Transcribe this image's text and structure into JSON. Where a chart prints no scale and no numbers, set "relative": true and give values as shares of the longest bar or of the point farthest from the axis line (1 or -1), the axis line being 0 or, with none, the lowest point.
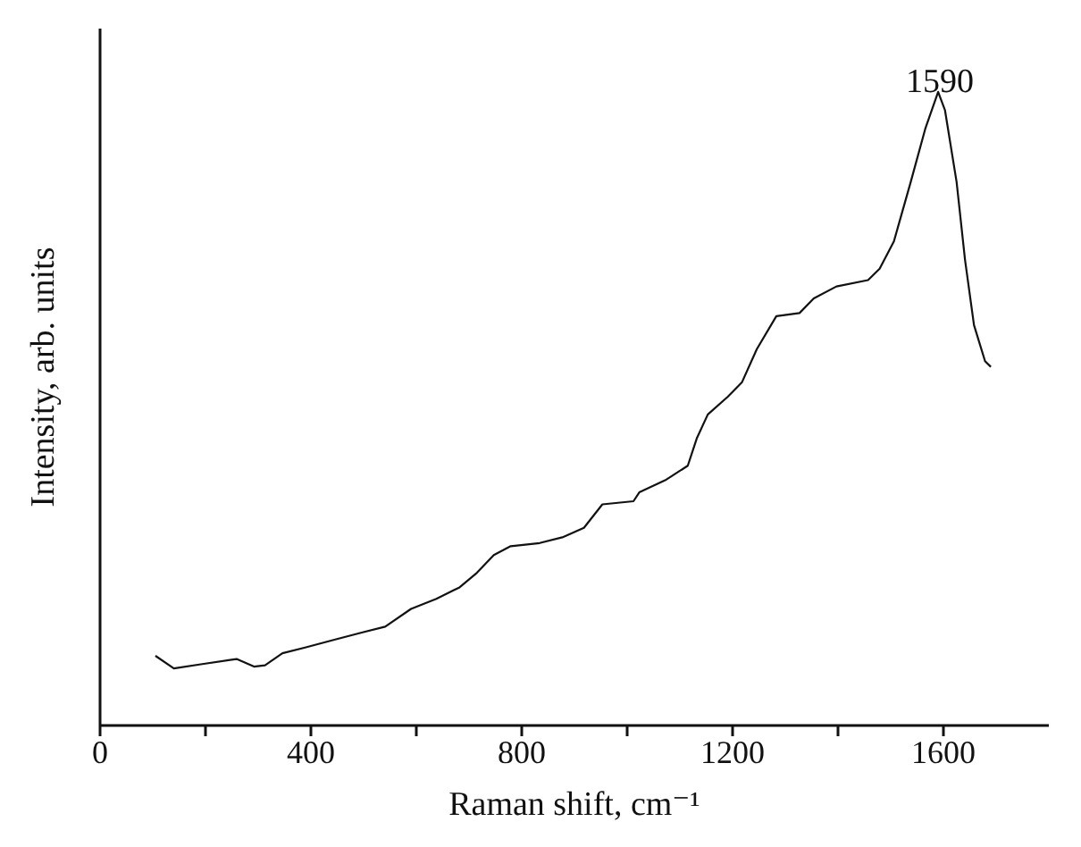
{
  "chart_data": {
    "type": "line",
    "relative": true,
    "xlabel": "Raman shift, cm⁻¹",
    "ylabel": "Intensity, arb. units",
    "xlim": [
      0,
      1800
    ],
    "xticks": [
      0,
      {
        "value": 200,
        "label": null
      },
      400,
      {
        "value": 600,
        "label": null
      },
      800,
      {
        "value": 1000,
        "label": null
      },
      1200,
      {
        "value": 1400,
        "label": null
      },
      1600
    ],
    "marker": "none",
    "line_style": "solid",
    "annotations": [
      {
        "text": "1590",
        "x": 1590,
        "y": 1
      }
    ],
    "series": [
      {
        "color": "#111111",
        "x": [
          105,
          140,
          194,
          259,
          292,
          313,
          346,
          389,
          443,
          498,
          541,
          590,
          638,
          682,
          715,
          747,
          779,
          834,
          877,
          918,
          953,
          1012,
          1023,
          1072,
          1115,
          1132,
          1153,
          1191,
          1218,
          1246,
          1283,
          1327,
          1354,
          1397,
          1457,
          1479,
          1506,
          1538,
          1566,
          1590,
          1603,
          1625,
          1641,
          1658,
          1679,
          1690
        ],
        "values": [
          0.11,
          0.09,
          0.097,
          0.105,
          0.093,
          0.095,
          0.114,
          0.123,
          0.135,
          0.147,
          0.156,
          0.184,
          0.2,
          0.218,
          0.241,
          0.269,
          0.283,
          0.288,
          0.297,
          0.312,
          0.349,
          0.354,
          0.368,
          0.387,
          0.41,
          0.453,
          0.491,
          0.519,
          0.542,
          0.594,
          0.646,
          0.651,
          0.674,
          0.693,
          0.703,
          0.721,
          0.764,
          0.858,
          0.943,
          1,
          0.971,
          0.858,
          0.735,
          0.632,
          0.575,
          0.566
        ]
      }
    ]
  }
}
